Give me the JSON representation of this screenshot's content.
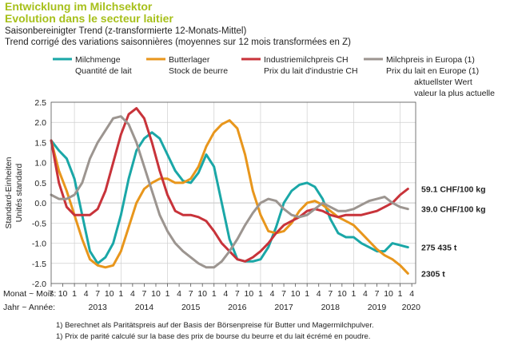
{
  "title_de": "Entwicklung im Milchsektor",
  "title_fr": "Evolution dans le secteur laitier",
  "subtitle_de": "Saisonbereinigter Trend (z-transformierte 12-Monats-Mittel)",
  "subtitle_fr": "Trend corrigé des variations saisonnières (moyennes sur 12 mois transformées en Z)",
  "colors": {
    "milchmenge": "#1aa7a7",
    "butterlager": "#e8961c",
    "industriemilchpreis": "#c8333a",
    "milchpreis_europa": "#9c9590",
    "grid": "#cfcfcf",
    "axis": "#555555"
  },
  "footnotes": [
    "1)  Berechnet als Paritätspreis auf der Basis der Börsenpreise für Butter und Magermilchpulver.",
    "1)  Prix de parité calculé sur la base des prix de bourse du beurre et du lait écrémé en poudre."
  ],
  "chart_data": {
    "type": "line",
    "legend_position": "top",
    "ylabel": [
      "Standard-Einheiten",
      "Unités standard"
    ],
    "ylim": [
      -2.0,
      2.5
    ],
    "yticks": [
      "2.5",
      "2.0",
      "1.5",
      "1.0",
      "0.5",
      "0.0",
      "-0.5",
      "-1.0",
      "-1.5",
      "-2.0"
    ],
    "x_caption": [
      "Monat ~ Mois:",
      "Jahr ~ Année:"
    ],
    "x_month_ticks": [
      "7",
      "10",
      "1",
      "4",
      "7",
      "10",
      "1",
      "4",
      "7",
      "10",
      "1",
      "4",
      "7",
      "10",
      "1",
      "4",
      "7",
      "10",
      "1",
      "4",
      "7",
      "10",
      "1",
      "4",
      "7",
      "10",
      "1",
      "4",
      "7",
      "10",
      "1",
      "4"
    ],
    "x_year_ticks": [
      "2013",
      "2014",
      "2015",
      "2016",
      "2017",
      "2018",
      "2019",
      "2020"
    ],
    "current_value_header": [
      "aktuellster Wert",
      "valeur la plus actuelle"
    ],
    "grid": true,
    "x_start": "2012-07",
    "x_end": "2020-05",
    "series": [
      {
        "name": [
          "Milchmenge",
          "Quantité de lait"
        ],
        "current_value": "275 435 t",
        "points": [
          [
            "2012-07",
            1.55
          ],
          [
            "2012-09",
            1.3
          ],
          [
            "2012-11",
            1.1
          ],
          [
            "2013-01",
            0.6
          ],
          [
            "2013-03",
            -0.3
          ],
          [
            "2013-05",
            -1.2
          ],
          [
            "2013-07",
            -1.5
          ],
          [
            "2013-09",
            -1.35
          ],
          [
            "2013-11",
            -1.0
          ],
          [
            "2014-01",
            -0.3
          ],
          [
            "2014-03",
            0.6
          ],
          [
            "2014-05",
            1.3
          ],
          [
            "2014-07",
            1.6
          ],
          [
            "2014-09",
            1.75
          ],
          [
            "2014-11",
            1.6
          ],
          [
            "2015-01",
            1.2
          ],
          [
            "2015-03",
            0.8
          ],
          [
            "2015-05",
            0.55
          ],
          [
            "2015-07",
            0.5
          ],
          [
            "2015-09",
            0.75
          ],
          [
            "2015-11",
            1.2
          ],
          [
            "2016-01",
            0.9
          ],
          [
            "2016-03",
            0.0
          ],
          [
            "2016-05",
            -0.9
          ],
          [
            "2016-07",
            -1.4
          ],
          [
            "2016-09",
            -1.45
          ],
          [
            "2016-11",
            -1.45
          ],
          [
            "2017-01",
            -1.4
          ],
          [
            "2017-03",
            -1.1
          ],
          [
            "2017-05",
            -0.6
          ],
          [
            "2017-07",
            0.0
          ],
          [
            "2017-09",
            0.3
          ],
          [
            "2017-11",
            0.45
          ],
          [
            "2018-01",
            0.5
          ],
          [
            "2018-03",
            0.4
          ],
          [
            "2018-05",
            0.1
          ],
          [
            "2018-07",
            -0.4
          ],
          [
            "2018-09",
            -0.75
          ],
          [
            "2018-11",
            -0.85
          ],
          [
            "2019-01",
            -0.85
          ],
          [
            "2019-03",
            -1.0
          ],
          [
            "2019-05",
            -1.1
          ],
          [
            "2019-07",
            -1.2
          ],
          [
            "2019-09",
            -1.2
          ],
          [
            "2019-11",
            -1.0
          ],
          [
            "2020-01",
            -1.05
          ],
          [
            "2020-03",
            -1.1
          ]
        ]
      },
      {
        "name": [
          "Butterlager",
          "Stock de beurre"
        ],
        "current_value": "2305 t",
        "points": [
          [
            "2012-07",
            1.55
          ],
          [
            "2012-09",
            0.8
          ],
          [
            "2012-11",
            0.3
          ],
          [
            "2013-01",
            -0.3
          ],
          [
            "2013-03",
            -0.9
          ],
          [
            "2013-05",
            -1.4
          ],
          [
            "2013-07",
            -1.55
          ],
          [
            "2013-09",
            -1.6
          ],
          [
            "2013-11",
            -1.55
          ],
          [
            "2014-01",
            -1.2
          ],
          [
            "2014-03",
            -0.6
          ],
          [
            "2014-05",
            0.0
          ],
          [
            "2014-07",
            0.35
          ],
          [
            "2014-09",
            0.5
          ],
          [
            "2014-11",
            0.6
          ],
          [
            "2015-01",
            0.6
          ],
          [
            "2015-03",
            0.5
          ],
          [
            "2015-05",
            0.5
          ],
          [
            "2015-07",
            0.6
          ],
          [
            "2015-09",
            0.9
          ],
          [
            "2015-11",
            1.4
          ],
          [
            "2016-01",
            1.75
          ],
          [
            "2016-03",
            1.95
          ],
          [
            "2016-05",
            2.05
          ],
          [
            "2016-07",
            1.85
          ],
          [
            "2016-09",
            1.2
          ],
          [
            "2016-11",
            0.3
          ],
          [
            "2017-01",
            -0.3
          ],
          [
            "2017-03",
            -0.7
          ],
          [
            "2017-05",
            -0.75
          ],
          [
            "2017-07",
            -0.7
          ],
          [
            "2017-09",
            -0.5
          ],
          [
            "2017-11",
            -0.2
          ],
          [
            "2018-01",
            0.0
          ],
          [
            "2018-03",
            0.05
          ],
          [
            "2018-05",
            -0.05
          ],
          [
            "2018-07",
            -0.2
          ],
          [
            "2018-09",
            -0.35
          ],
          [
            "2018-11",
            -0.45
          ],
          [
            "2019-01",
            -0.55
          ],
          [
            "2019-03",
            -0.75
          ],
          [
            "2019-05",
            -0.95
          ],
          [
            "2019-07",
            -1.15
          ],
          [
            "2019-09",
            -1.3
          ],
          [
            "2019-11",
            -1.4
          ],
          [
            "2020-01",
            -1.55
          ],
          [
            "2020-03",
            -1.75
          ]
        ]
      },
      {
        "name": [
          "Industriemilchpreis CH",
          "Prix du lait d'industrie CH"
        ],
        "current_value": "59.1 CHF/100 kg",
        "points": [
          [
            "2012-07",
            1.55
          ],
          [
            "2012-09",
            0.5
          ],
          [
            "2012-11",
            -0.1
          ],
          [
            "2013-01",
            -0.3
          ],
          [
            "2013-03",
            -0.3
          ],
          [
            "2013-05",
            -0.3
          ],
          [
            "2013-07",
            -0.15
          ],
          [
            "2013-09",
            0.3
          ],
          [
            "2013-11",
            1.0
          ],
          [
            "2014-01",
            1.7
          ],
          [
            "2014-03",
            2.2
          ],
          [
            "2014-05",
            2.35
          ],
          [
            "2014-07",
            2.1
          ],
          [
            "2014-09",
            1.5
          ],
          [
            "2014-11",
            0.8
          ],
          [
            "2015-01",
            0.2
          ],
          [
            "2015-03",
            -0.2
          ],
          [
            "2015-05",
            -0.3
          ],
          [
            "2015-07",
            -0.3
          ],
          [
            "2015-09",
            -0.35
          ],
          [
            "2015-11",
            -0.45
          ],
          [
            "2016-01",
            -0.7
          ],
          [
            "2016-03",
            -1.0
          ],
          [
            "2016-05",
            -1.2
          ],
          [
            "2016-07",
            -1.4
          ],
          [
            "2016-09",
            -1.45
          ],
          [
            "2016-11",
            -1.35
          ],
          [
            "2017-01",
            -1.2
          ],
          [
            "2017-03",
            -1.0
          ],
          [
            "2017-05",
            -0.75
          ],
          [
            "2017-07",
            -0.55
          ],
          [
            "2017-09",
            -0.45
          ],
          [
            "2017-11",
            -0.35
          ],
          [
            "2018-01",
            -0.2
          ],
          [
            "2018-03",
            -0.15
          ],
          [
            "2018-05",
            -0.2
          ],
          [
            "2018-07",
            -0.3
          ],
          [
            "2018-09",
            -0.35
          ],
          [
            "2018-11",
            -0.3
          ],
          [
            "2019-01",
            -0.3
          ],
          [
            "2019-03",
            -0.3
          ],
          [
            "2019-05",
            -0.25
          ],
          [
            "2019-07",
            -0.2
          ],
          [
            "2019-09",
            -0.1
          ],
          [
            "2019-11",
            0.0
          ],
          [
            "2020-01",
            0.2
          ],
          [
            "2020-03",
            0.35
          ]
        ]
      },
      {
        "name": [
          "Milchpreis in Europa (1)",
          "Prix du lait en Europe (1)"
        ],
        "current_value": "39.0 CHF/100 kg",
        "points": [
          [
            "2012-07",
            0.2
          ],
          [
            "2012-09",
            0.1
          ],
          [
            "2012-11",
            0.1
          ],
          [
            "2013-01",
            0.2
          ],
          [
            "2013-03",
            0.5
          ],
          [
            "2013-05",
            1.1
          ],
          [
            "2013-07",
            1.5
          ],
          [
            "2013-09",
            1.8
          ],
          [
            "2013-11",
            2.1
          ],
          [
            "2014-01",
            2.15
          ],
          [
            "2014-03",
            1.95
          ],
          [
            "2014-05",
            1.5
          ],
          [
            "2014-07",
            0.9
          ],
          [
            "2014-09",
            0.3
          ],
          [
            "2014-11",
            -0.3
          ],
          [
            "2015-01",
            -0.7
          ],
          [
            "2015-03",
            -1.0
          ],
          [
            "2015-05",
            -1.2
          ],
          [
            "2015-07",
            -1.35
          ],
          [
            "2015-09",
            -1.5
          ],
          [
            "2015-11",
            -1.6
          ],
          [
            "2016-01",
            -1.6
          ],
          [
            "2016-03",
            -1.45
          ],
          [
            "2016-05",
            -1.2
          ],
          [
            "2016-07",
            -0.9
          ],
          [
            "2016-09",
            -0.55
          ],
          [
            "2016-11",
            -0.25
          ],
          [
            "2017-01",
            0.0
          ],
          [
            "2017-03",
            0.1
          ],
          [
            "2017-05",
            0.05
          ],
          [
            "2017-07",
            -0.15
          ],
          [
            "2017-09",
            -0.3
          ],
          [
            "2017-11",
            -0.35
          ],
          [
            "2018-01",
            -0.3
          ],
          [
            "2018-03",
            -0.15
          ],
          [
            "2018-05",
            0.0
          ],
          [
            "2018-07",
            -0.1
          ],
          [
            "2018-09",
            -0.2
          ],
          [
            "2018-11",
            -0.2
          ],
          [
            "2019-01",
            -0.15
          ],
          [
            "2019-03",
            -0.05
          ],
          [
            "2019-05",
            0.05
          ],
          [
            "2019-07",
            0.1
          ],
          [
            "2019-09",
            0.15
          ],
          [
            "2019-11",
            0.0
          ],
          [
            "2020-01",
            -0.1
          ],
          [
            "2020-03",
            -0.15
          ]
        ]
      }
    ]
  }
}
